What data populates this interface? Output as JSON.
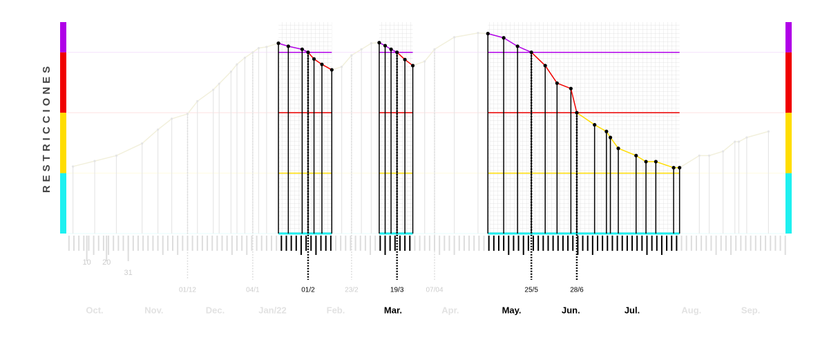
{
  "chart_data": {
    "type": "line",
    "y_label": "RESTRICCIONES",
    "x": [
      3,
      14,
      25,
      38,
      46,
      53,
      61,
      66,
      74,
      77,
      83,
      86,
      90,
      94,
      97,
      101,
      107,
      112,
      119,
      122,
      125,
      129,
      134,
      139,
      144,
      149,
      154,
      158,
      161,
      164,
      167,
      171,
      175,
      181,
      186,
      196,
      208,
      213,
      221,
      228,
      235,
      242,
      248,
      255,
      258,
      267,
      273,
      275,
      279,
      288,
      293,
      298,
      307,
      310,
      320,
      325,
      332,
      338,
      340,
      344,
      355
    ],
    "values": [
      1.11,
      1.2,
      1.29,
      1.49,
      1.72,
      1.9,
      1.98,
      2.19,
      2.38,
      2.48,
      2.68,
      2.8,
      2.91,
      3.0,
      3.07,
      3.09,
      3.15,
      3.1,
      3.05,
      3.0,
      2.89,
      2.8,
      2.71,
      2.76,
      2.95,
      3.05,
      3.15,
      3.16,
      3.11,
      3.05,
      3.0,
      2.88,
      2.78,
      2.85,
      3.05,
      3.25,
      3.32,
      3.31,
      3.24,
      3.1,
      3.0,
      2.78,
      2.49,
      2.4,
      2.0,
      1.8,
      1.69,
      1.59,
      1.41,
      1.29,
      1.19,
      1.19,
      1.09,
      1.09,
      1.29,
      1.29,
      1.36,
      1.52,
      1.52,
      1.59,
      1.69
    ],
    "xlim": [
      0,
      365
    ],
    "ylim": [
      0,
      3.5
    ],
    "xticks": [
      10,
      20,
      31
    ],
    "bands": [
      {
        "range": [
          0,
          1
        ],
        "color": "#1ef0f0"
      },
      {
        "range": [
          1,
          2
        ],
        "color": "#ffdd00"
      },
      {
        "range": [
          2,
          3
        ],
        "color": "#f00000"
      },
      {
        "range": [
          3,
          3.5
        ],
        "color": "#b000e8"
      }
    ],
    "highlight_windows": [
      [
        107,
        134
      ],
      [
        158,
        175
      ],
      [
        213,
        310
      ]
    ],
    "month_labels": [
      {
        "value": 14,
        "label": "Oct."
      },
      {
        "value": 44,
        "label": "Nov."
      },
      {
        "value": 75,
        "label": "Dec."
      },
      {
        "value": 104,
        "label": "Jan/22"
      },
      {
        "value": 136,
        "label": "Feb."
      },
      {
        "value": 165,
        "label": "Mar."
      },
      {
        "value": 194,
        "label": "Apr."
      },
      {
        "value": 225,
        "label": "May."
      },
      {
        "value": 255,
        "label": "Jun."
      },
      {
        "value": 286,
        "label": "Jul."
      },
      {
        "value": 316,
        "label": "Aug."
      },
      {
        "value": 346,
        "label": "Sep."
      }
    ],
    "date_markers": [
      {
        "value": 61,
        "label": "01/12"
      },
      {
        "value": 94,
        "label": "04/1"
      },
      {
        "value": 122,
        "label": "01/2"
      },
      {
        "value": 144,
        "label": "23/2"
      },
      {
        "value": 167,
        "label": "19/3"
      },
      {
        "value": 186,
        "label": "07/04"
      },
      {
        "value": 235,
        "label": "25/5"
      },
      {
        "value": 258,
        "label": "28/6"
      }
    ]
  }
}
